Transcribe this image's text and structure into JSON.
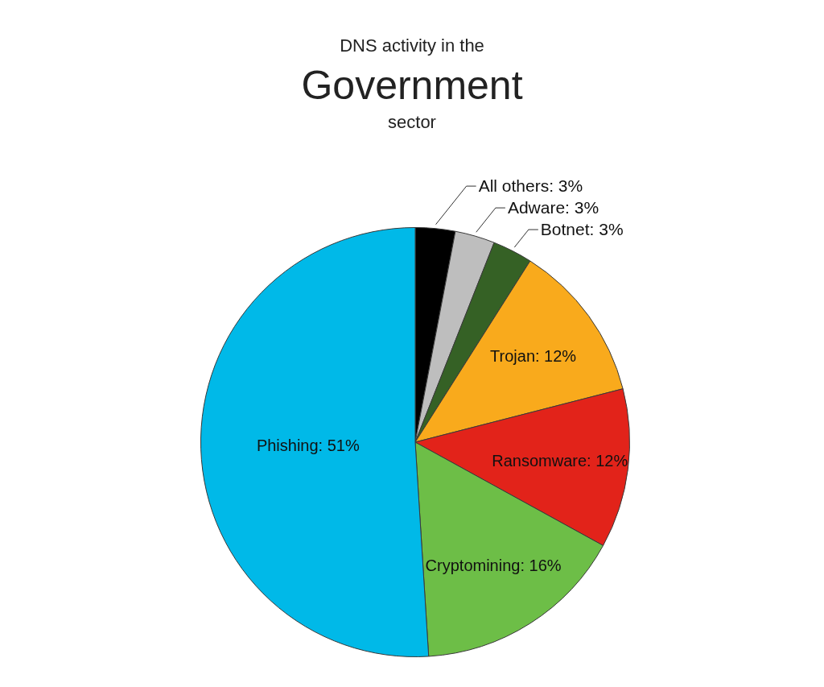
{
  "chart_data": {
    "type": "pie",
    "title": "DNS activity in the\nGovernment\nsector",
    "categories": [
      "All others",
      "Adware",
      "Botnet",
      "Trojan",
      "Ransomware",
      "Cryptomining",
      "Phishing"
    ],
    "values": [
      3,
      3,
      3,
      12,
      12,
      16,
      51
    ],
    "colors": [
      "#000000",
      "#bebebe",
      "#356125",
      "#f9aa1c",
      "#e2231a",
      "#6dbe47",
      "#00b9e8"
    ],
    "value_labels": [
      "3%",
      "3%",
      "3%",
      "12%",
      "12%",
      "16%",
      "51%"
    ]
  }
}
